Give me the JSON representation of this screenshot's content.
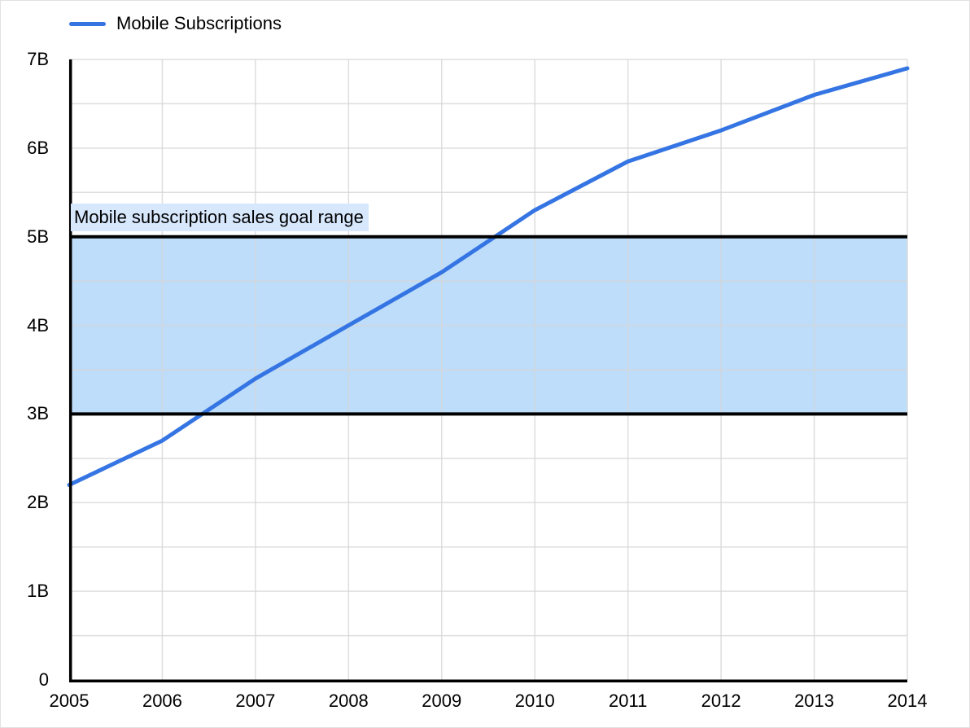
{
  "legend": {
    "items": [
      {
        "label": "Mobile Subscriptions",
        "color": "#3575e3"
      }
    ]
  },
  "colors": {
    "line": "#3575e3",
    "band_fill": "#bdddfb",
    "band_border": "#000000",
    "band_label_bg": "#d7e7fc",
    "grid": "#d6d6d6",
    "axis": "#000000",
    "text": "#000000",
    "background": "#ffffff"
  },
  "chart_data": {
    "type": "line",
    "title": "",
    "xlabel": "",
    "ylabel": "",
    "x": [
      2005,
      2006,
      2007,
      2008,
      2009,
      2010,
      2011,
      2012,
      2013,
      2014
    ],
    "x_tick_labels": [
      "2005",
      "2006",
      "2007",
      "2008",
      "2009",
      "2010",
      "2011",
      "2012",
      "2013",
      "2014"
    ],
    "series": [
      {
        "name": "Mobile Subscriptions",
        "color": "#3575e3",
        "values": [
          2.2,
          2.7,
          3.4,
          4.0,
          4.6,
          5.3,
          5.85,
          6.2,
          6.6,
          6.9
        ]
      }
    ],
    "ylim": [
      0,
      7
    ],
    "y_ticks": [
      {
        "value": 0,
        "label": "0"
      },
      {
        "value": 1,
        "label": "1B"
      },
      {
        "value": 2,
        "label": "2B"
      },
      {
        "value": 3,
        "label": "3B"
      },
      {
        "value": 4,
        "label": "4B"
      },
      {
        "value": 5,
        "label": "5B"
      },
      {
        "value": 6,
        "label": "6B"
      },
      {
        "value": 7,
        "label": "7B"
      }
    ],
    "grid": true,
    "grid_step": 0.5,
    "legend_position": "top-left",
    "band": {
      "from": 3,
      "to": 5,
      "label": "Mobile subscription sales goal range"
    }
  }
}
